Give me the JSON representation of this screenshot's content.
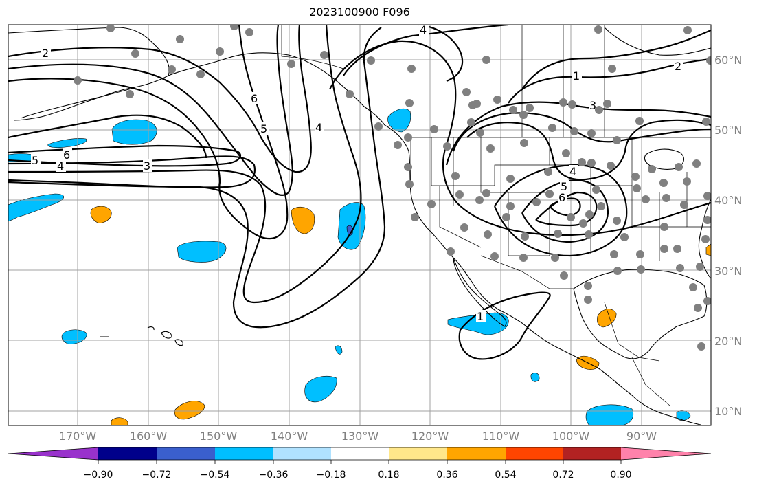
{
  "title": "2023100900 F096",
  "map": {
    "projection": "PlateCarree",
    "lon_range": [
      -180,
      -80
    ],
    "lat_range": [
      8,
      65
    ],
    "gridlines": true,
    "lon_ticks": [
      "170°W",
      "160°W",
      "150°W",
      "140°W",
      "130°W",
      "120°W",
      "110°W",
      "100°W",
      "90°W"
    ],
    "lat_ticks": [
      "10°N",
      "20°N",
      "30°N",
      "40°N",
      "50°N",
      "60°N"
    ],
    "contour_labels": [
      "2",
      "6",
      "5",
      "4",
      "3",
      "6",
      "5",
      "4",
      "4",
      "1",
      "2",
      "3",
      "4",
      "5",
      "6",
      "1"
    ],
    "station_marker_color": "#808080"
  },
  "colorbar": {
    "colors": [
      "#9932CC",
      "#00008B",
      "#3A5FCD",
      "#00BFFF",
      "#B0E2FF",
      "#FFFFFF",
      "#FFE78A",
      "#FFA500",
      "#FF4500",
      "#B22222",
      "#FF82AB"
    ],
    "tick_labels": [
      "−0.90",
      "−0.72",
      "−0.54",
      "−0.36",
      "−0.18",
      "0.18",
      "0.36",
      "0.54",
      "0.72",
      "0.90"
    ]
  }
}
